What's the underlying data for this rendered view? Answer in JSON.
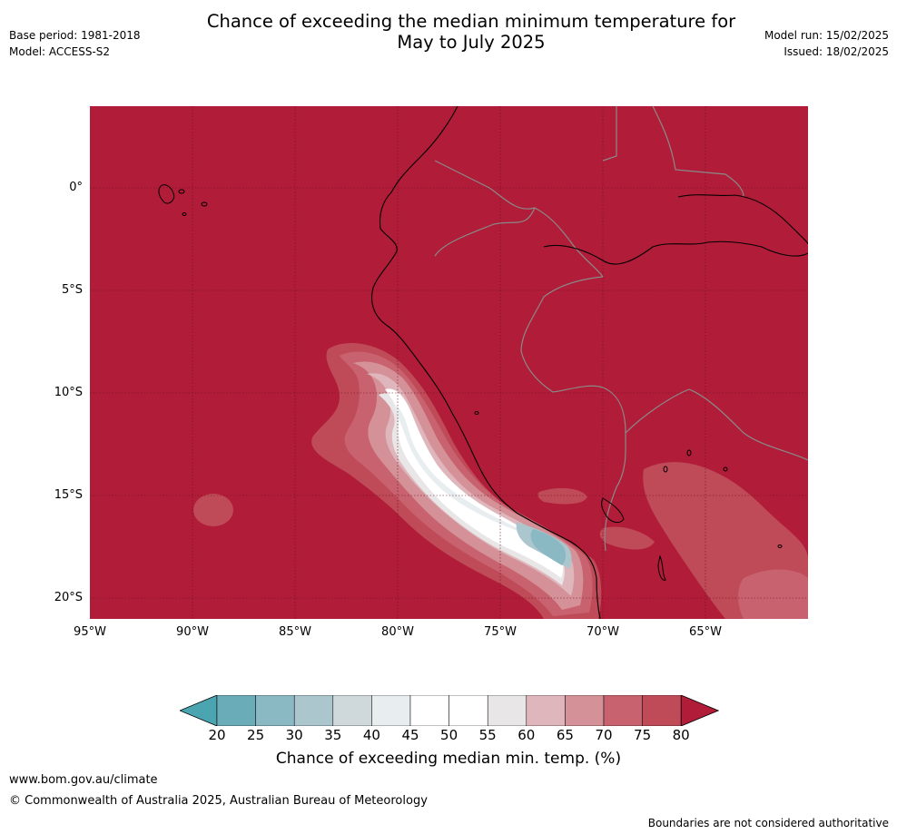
{
  "title": {
    "line1": "Chance of exceeding the median minimum temperature for",
    "line2": "May to July 2025"
  },
  "meta_left": {
    "base_period": "Base period: 1981-2018",
    "model": "Model: ACCESS-S2"
  },
  "meta_right": {
    "model_run": "Model run: 15/02/2025",
    "issued": "Issued: 18/02/2025"
  },
  "map": {
    "lat_labels": [
      "0°",
      "5°S",
      "10°S",
      "15°S",
      "20°S"
    ],
    "lon_labels": [
      "95°W",
      "90°W",
      "85°W",
      "80°W",
      "75°W",
      "70°W",
      "65°W"
    ],
    "colors": {
      "ocean_high": "#b11c38",
      "border_line": "#8a8a8a",
      "coast_line": "#000000"
    }
  },
  "legend": {
    "title": "Chance of exceeding median min. temp. (%)",
    "ticks": [
      "20",
      "25",
      "30",
      "35",
      "40",
      "45",
      "50",
      "55",
      "60",
      "65",
      "70",
      "75",
      "80"
    ],
    "bins": [
      {
        "from": 20,
        "to": 25,
        "color": "#6aacb8"
      },
      {
        "from": 25,
        "to": 30,
        "color": "#8ab9c4"
      },
      {
        "from": 30,
        "to": 35,
        "color": "#abc7cd"
      },
      {
        "from": 35,
        "to": 40,
        "color": "#cfd8da"
      },
      {
        "from": 40,
        "to": 45,
        "color": "#e8eef0"
      },
      {
        "from": 45,
        "to": 50,
        "color": "#ffffff"
      },
      {
        "from": 50,
        "to": 55,
        "color": "#ffffff"
      },
      {
        "from": 55,
        "to": 60,
        "color": "#e9e6e7"
      },
      {
        "from": 60,
        "to": 65,
        "color": "#deb6bc"
      },
      {
        "from": 65,
        "to": 70,
        "color": "#d59198"
      },
      {
        "from": 70,
        "to": 75,
        "color": "#c8626f"
      },
      {
        "from": 75,
        "to": 80,
        "color": "#bf4a58"
      }
    ],
    "under_color": "#4aa5b1",
    "over_color": "#b11c38"
  },
  "footer": {
    "url": "www.bom.gov.au/climate",
    "copyright": "© Commonwealth of Australia 2025, Australian Bureau of Meteorology",
    "disclaimer": "Boundaries are not considered authoritative"
  }
}
